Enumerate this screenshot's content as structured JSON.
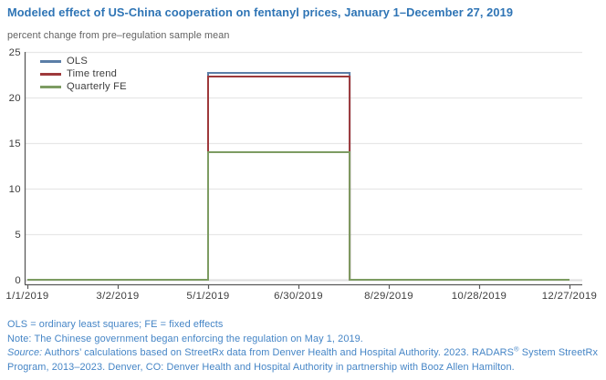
{
  "chart_data": {
    "type": "line",
    "subtype": "step",
    "title": "Modeled effect of US-China cooperation on fentanyl prices, January 1–December 27, 2019",
    "ylabel": "percent change from pre–regulation sample mean",
    "xlabel": "",
    "x_tick_labels": [
      "1/1/2019",
      "3/2/2019",
      "5/1/2019",
      "6/30/2019",
      "8/29/2019",
      "10/28/2019",
      "12/27/2019"
    ],
    "days_between_ticks": 60,
    "x_total_days": 360,
    "y_ticks": [
      0,
      5,
      10,
      15,
      20,
      25
    ],
    "ylim": [
      0,
      25
    ],
    "grid": "horizontal",
    "legend_position": "top-left-inside",
    "regulation_window": {
      "start_label": "5/1/2019",
      "start_day": 120,
      "end_day": 214
    },
    "series": [
      {
        "name": "OLS",
        "color": "#5b7ea7",
        "effect_level": 22.7,
        "x_days": [
          0,
          120,
          120,
          214,
          214,
          360
        ],
        "y": [
          0,
          0,
          22.7,
          22.7,
          0,
          0
        ]
      },
      {
        "name": "Time trend",
        "color": "#9e393b",
        "effect_level": 22.3,
        "x_days": [
          0,
          120,
          120,
          214,
          214,
          360
        ],
        "y": [
          0,
          0,
          22.3,
          22.3,
          0,
          0
        ]
      },
      {
        "name": "Quarterly FE",
        "color": "#7d9c62",
        "effect_level": 14.0,
        "x_days": [
          0,
          120,
          120,
          214,
          214,
          360
        ],
        "y": [
          0,
          0,
          14.0,
          14.0,
          0,
          0
        ]
      }
    ]
  },
  "footnotes": {
    "abbr": "OLS = ordinary least squares; FE = fixed effects",
    "note": "Note: The Chinese government began enforcing the regulation on May 1, 2019.",
    "source_label": "Source:",
    "source_part1": " Authors’ calculations based on StreetRx data from Denver Health and Hospital Authority. 2023. RADARS",
    "source_reg": "®",
    "source_part2": " System StreetRx Program, 2013–2023. Denver, CO: Denver Health and Hospital Authority in partnership with Booz Allen Hamilton."
  },
  "colors": {
    "title_blue": "#2e74b5",
    "footnote_blue": "#4585c6",
    "subtitle_gray": "#626262",
    "axis_gray": "#5a5a5a",
    "tick_label_gray": "#3d3d3d",
    "gridline_gray": "#e7e7e7"
  }
}
